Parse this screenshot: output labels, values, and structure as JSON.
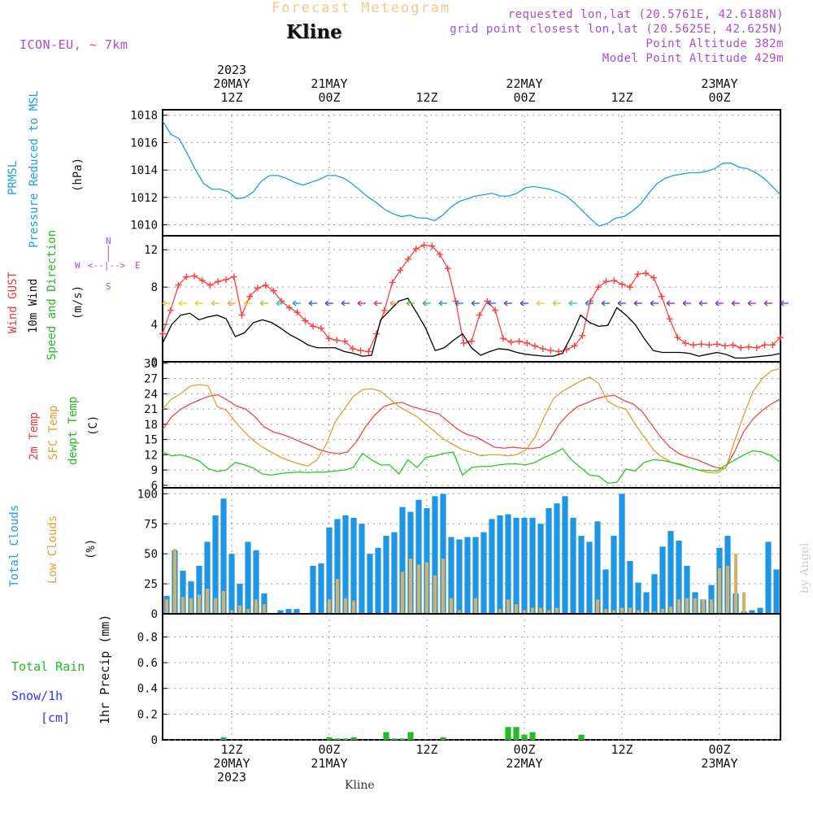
{
  "header": {
    "title": "Forecast Meteogram",
    "model": "ICON-EU, ~ 7km",
    "location": "Kline",
    "requested": "requested lon,lat (20.5761E, 42.6188N)",
    "grid": "grid point closest lon,lat (20.5625E, 42.625N)",
    "point_alt": "Point Altitude 382m",
    "model_alt": "Model Point Altitude 429m",
    "footer_location": "Kline",
    "watermark": "by Angel"
  },
  "top_axis": [
    {
      "line1": "2023",
      "line2": "20MAY",
      "line3": "12Z"
    },
    {
      "line1": "",
      "line2": "21MAY",
      "line3": "00Z"
    },
    {
      "line1": "",
      "line2": "",
      "line3": "12Z"
    },
    {
      "line1": "",
      "line2": "22MAY",
      "line3": "00Z"
    },
    {
      "line1": "",
      "line2": "",
      "line3": "12Z"
    },
    {
      "line1": "",
      "line2": "23MAY",
      "line3": "00Z"
    }
  ],
  "bottom_axis": [
    {
      "line1": "12Z",
      "line2": "20MAY",
      "line3": "2023"
    },
    {
      "line1": "00Z",
      "line2": "21MAY",
      "line3": ""
    },
    {
      "line1": "12Z",
      "line2": "",
      "line3": ""
    },
    {
      "line1": "00Z",
      "line2": "22MAY",
      "line3": ""
    },
    {
      "line1": "12Z",
      "line2": "",
      "line3": ""
    },
    {
      "line1": "00Z",
      "line2": "23MAY",
      "line3": ""
    }
  ],
  "labels": {
    "prmsl": "PRMSL",
    "prmsl_long": "Pressure Reduced to MSL",
    "prmsl_unit": "(hPa)",
    "gust": "Wind GUST",
    "wind10": "10m Wind",
    "wind_dir": "Speed and Direction",
    "wind_unit": "(m/s)",
    "compass_n": "N",
    "compass_s": "S",
    "compass_w": "W",
    "compass_e": "E",
    "t2m": "2m Temp",
    "sfc": "SFC Temp",
    "dewpt": "dewpt Temp",
    "temp_unit": "(C)",
    "total_clouds": "Total Clouds",
    "low_clouds": "Low Clouds",
    "cloud_unit": "(%)",
    "total_rain": "Total  Rain",
    "snow": "Snow/1h",
    "snow_unit": "[cm]",
    "precip": "1hr Precip (mm)"
  },
  "colors": {
    "pressure": "#1aa0e6",
    "gust": "#ff4040",
    "wind": "#000000",
    "t2m": "#f04848",
    "sfc": "#e0a030",
    "dew": "#22cc22",
    "total_cloud": "#1e96e6",
    "low_cloud": "#d8b060",
    "rain": "#22bb22",
    "snow": "#3333ff",
    "header": "#a64fd2"
  },
  "chart_data": [
    {
      "type": "line",
      "name": "pressure",
      "title": "PRMSL Pressure Reduced to MSL",
      "ylabel": "hPa",
      "x_start": 0,
      "x_end": 76,
      "ylim": [
        1009.2,
        1018.4
      ],
      "yticks": [
        1010,
        1012,
        1014,
        1016,
        1018
      ],
      "series": [
        {
          "name": "PRMSL",
          "values": [
            1017.6,
            1016.6,
            1016.3,
            1015.2,
            1014.0,
            1013.0,
            1012.6,
            1012.6,
            1012.4,
            1011.9,
            1012.0,
            1012.4,
            1013.2,
            1013.6,
            1013.6,
            1013.4,
            1013.1,
            1012.9,
            1013.1,
            1013.3,
            1013.6,
            1013.6,
            1013.4,
            1013.0,
            1012.5,
            1012.0,
            1011.6,
            1011.1,
            1010.8,
            1010.6,
            1010.7,
            1010.5,
            1010.5,
            1010.3,
            1010.7,
            1011.3,
            1011.7,
            1011.9,
            1012.1,
            1012.2,
            1012.3,
            1012.1,
            1012.1,
            1012.3,
            1012.7,
            1012.8,
            1012.7,
            1012.6,
            1012.4,
            1012.1,
            1011.6,
            1011.0,
            1010.4,
            1009.9,
            1010.1,
            1010.5,
            1010.6,
            1011.0,
            1011.5,
            1012.3,
            1013.0,
            1013.4,
            1013.6,
            1013.7,
            1013.8,
            1013.8,
            1013.9,
            1014.1,
            1014.5,
            1014.5,
            1014.2,
            1014.1,
            1013.8,
            1013.4,
            1012.8,
            1012.2
          ]
        }
      ]
    },
    {
      "type": "line",
      "name": "wind",
      "title": "Wind GUST / 10m Wind",
      "ylabel": "m/s",
      "x_start": 0,
      "x_end": 76,
      "ylim": [
        0,
        13.5
      ],
      "yticks": [
        0,
        4,
        8,
        12
      ],
      "series": [
        {
          "name": "Wind GUST",
          "values": [
            3.0,
            5.5,
            8.2,
            9.1,
            9.2,
            8.7,
            8.2,
            8.6,
            8.8,
            9.1,
            5.0,
            7.0,
            7.9,
            8.2,
            7.6,
            6.5,
            5.8,
            5.3,
            4.4,
            3.8,
            3.6,
            2.5,
            2.3,
            2.2,
            1.4,
            1.2,
            1.1,
            3.0,
            5.5,
            8.5,
            9.8,
            11.0,
            12.1,
            12.5,
            12.4,
            11.5,
            10.0,
            6.5,
            2.0,
            2.2,
            5.0,
            6.5,
            5.5,
            2.5,
            2.1,
            2.2,
            2.0,
            1.7,
            1.4,
            1.2,
            1.1,
            1.3,
            1.7,
            2.8,
            6.5,
            8.0,
            8.6,
            8.7,
            8.3,
            8.0,
            9.4,
            9.5,
            9.0,
            7.0,
            4.6,
            2.6,
            2.0,
            1.8,
            1.9,
            1.8,
            1.9,
            1.7,
            1.8,
            1.5,
            1.6,
            1.5,
            1.8,
            1.8,
            2.6
          ]
        },
        {
          "name": "10m Wind",
          "values": [
            2.0,
            4.0,
            5.0,
            5.2,
            4.5,
            4.8,
            5.0,
            4.6,
            2.7,
            3.1,
            4.2,
            4.5,
            4.2,
            3.6,
            2.9,
            2.4,
            1.8,
            1.5,
            1.5,
            1.5,
            1.1,
            0.9,
            0.6,
            0.7,
            4.5,
            5.5,
            6.5,
            6.8,
            5.2,
            3.5,
            1.2,
            1.5,
            2.3,
            3.0,
            1.5,
            0.7,
            1.1,
            1.4,
            1.3,
            1.0,
            0.8,
            0.7,
            0.6,
            0.6,
            0.9,
            2.8,
            5.0,
            4.2,
            3.8,
            3.9,
            5.8,
            5.0,
            4.0,
            2.5,
            1.2,
            1.0,
            1.0,
            1.0,
            0.9,
            0.6,
            0.8,
            1.0,
            0.8,
            0.4,
            0.4,
            0.5,
            0.6,
            0.7,
            0.9
          ]
        }
      ]
    },
    {
      "type": "line",
      "name": "temperature",
      "title": "2m Temp / SFC Temp / dewpt Temp",
      "ylabel": "C",
      "x_start": 0,
      "x_end": 76,
      "ylim": [
        5.5,
        30.3
      ],
      "yticks": [
        6,
        9,
        12,
        15,
        18,
        21,
        24,
        27,
        30
      ],
      "series": [
        {
          "name": "2m Temp",
          "values": [
            17.0,
            19.5,
            21.0,
            22.0,
            22.8,
            23.5,
            23.8,
            22.8,
            21.6,
            21.0,
            19.5,
            17.5,
            16.5,
            16.0,
            15.3,
            14.5,
            13.8,
            13.0,
            12.5,
            12.2,
            12.5,
            14.5,
            17.5,
            19.8,
            21.5,
            22.1,
            22.3,
            21.5,
            21.0,
            20.5,
            20.0,
            18.5,
            17.0,
            16.0,
            15.5,
            14.5,
            13.5,
            13.3,
            13.5,
            13.3,
            13.2,
            13.5,
            15.0,
            18.0,
            20.0,
            21.5,
            22.2,
            23.0,
            23.5,
            23.7,
            22.7,
            22.0,
            20.5,
            18.0,
            15.5,
            13.5,
            12.2,
            11.5,
            11.0,
            10.2,
            9.5,
            9.3,
            12.5,
            16.5,
            19.0,
            20.7,
            22.0,
            23.0
          ]
        },
        {
          "name": "SFC Temp",
          "values": [
            21.0,
            23.0,
            24.0,
            25.5,
            25.8,
            25.6,
            21.5,
            20.8,
            18.5,
            16.5,
            14.8,
            13.5,
            12.5,
            11.5,
            10.8,
            10.2,
            9.8,
            11.0,
            14.0,
            18.5,
            21.0,
            23.5,
            24.8,
            25.0,
            24.5,
            23.0,
            21.5,
            20.5,
            19.5,
            18.0,
            16.5,
            15.0,
            14.0,
            13.0,
            12.5,
            11.8,
            12.0,
            12.0,
            11.8,
            12.0,
            13.0,
            15.5,
            19.5,
            23.0,
            24.5,
            25.5,
            26.5,
            27.3,
            26.0,
            22.5,
            21.5,
            21.0,
            18.0,
            15.5,
            13.0,
            11.5,
            10.5,
            10.2,
            9.5,
            9.0,
            8.5,
            8.4,
            9.5,
            15.0,
            20.0,
            24.5,
            27.0,
            28.5,
            29.0
          ]
        },
        {
          "name": "dewpt Temp",
          "values": [
            12.5,
            11.8,
            12.0,
            11.5,
            10.8,
            9.3,
            8.7,
            9.0,
            10.5,
            10.0,
            9.4,
            8.2,
            8.0,
            8.3,
            8.5,
            8.6,
            8.5,
            8.6,
            8.6,
            8.8,
            9.0,
            9.5,
            12.3,
            11.0,
            10.0,
            10.0,
            8.2,
            11.0,
            9.5,
            11.5,
            11.8,
            12.3,
            12.5,
            8.0,
            9.5,
            9.7,
            9.7,
            10.0,
            10.2,
            10.2,
            10.0,
            10.5,
            11.5,
            12.2,
            13.2,
            11.0,
            9.5,
            8.0,
            7.8,
            6.4,
            6.6,
            9.2,
            8.8,
            10.5,
            11.0,
            10.9,
            10.5,
            10.0,
            9.5,
            9.0,
            8.9,
            8.8,
            10.0,
            11.0,
            12.0,
            12.8,
            12.5,
            11.8,
            10.5
          ]
        }
      ]
    },
    {
      "type": "bar",
      "name": "clouds",
      "title": "Total Clouds / Low Clouds",
      "ylabel": "%",
      "x_start": 0,
      "x_end": 76,
      "ylim": [
        0,
        105
      ],
      "yticks": [
        0,
        25,
        50,
        75,
        100
      ],
      "series": [
        {
          "name": "Total Clouds",
          "values": [
            15,
            53,
            36,
            27,
            40,
            60,
            82,
            96,
            50,
            25,
            60,
            53,
            17,
            0,
            3,
            4,
            4,
            0,
            40,
            42,
            72,
            79,
            82,
            80,
            75,
            50,
            55,
            65,
            68,
            89,
            85,
            95,
            88,
            98,
            100,
            64,
            62,
            64,
            64,
            68,
            79,
            82,
            83,
            80,
            80,
            80,
            75,
            88,
            92,
            98,
            80,
            65,
            60,
            77,
            37,
            65,
            100,
            44,
            26,
            18,
            33,
            56,
            69,
            61,
            40,
            18,
            12,
            24,
            55,
            65,
            17,
            2,
            3,
            5,
            60,
            37,
            43
          ]
        },
        {
          "name": "Low Clouds",
          "values": [
            12,
            54,
            14,
            13,
            16,
            21,
            13,
            19,
            3,
            7,
            4,
            12,
            8,
            0,
            0,
            0,
            0,
            0,
            0,
            0,
            12,
            29,
            13,
            11,
            0,
            0,
            0,
            0,
            0,
            35,
            46,
            41,
            43,
            32,
            46,
            13,
            3,
            0,
            13,
            0,
            0,
            4,
            12,
            8,
            3,
            5,
            5,
            3,
            5,
            0,
            0,
            0,
            0,
            12,
            4,
            3,
            5,
            5,
            3,
            2,
            2,
            4,
            6,
            12,
            13,
            13,
            12,
            12,
            38,
            40,
            50,
            18,
            0,
            0,
            0,
            0,
            15,
            29,
            26
          ]
        }
      ]
    },
    {
      "type": "bar",
      "name": "precip",
      "title": "1hr Precip (mm)",
      "ylabel": "mm",
      "x_start": 0,
      "x_end": 76,
      "ylim": [
        0,
        0.98
      ],
      "yticks": [
        0,
        0.2,
        0.4,
        0.6,
        0.8
      ],
      "series": [
        {
          "name": "Total Rain",
          "values": [
            0,
            0,
            0,
            0,
            0,
            0,
            0,
            0.02,
            0,
            0,
            0,
            0,
            0,
            0,
            0,
            0,
            0,
            0,
            0,
            0,
            0.02,
            0.01,
            0.01,
            0.02,
            0,
            0,
            0,
            0.06,
            0.01,
            0.01,
            0.06,
            0,
            0,
            0,
            0.02,
            0,
            0,
            0,
            0,
            0,
            0,
            0,
            0.1,
            0.1,
            0.04,
            0.06,
            0,
            0,
            0,
            0,
            0,
            0.04,
            0,
            0,
            0,
            0,
            0,
            0,
            0,
            0,
            0,
            0,
            0,
            0,
            0,
            0,
            0,
            0,
            0,
            0,
            0,
            0,
            0,
            0,
            0,
            0
          ]
        }
      ]
    }
  ],
  "wind_barbs": [
    {
      "hour": 0,
      "color": "#e8c830"
    },
    {
      "hour": 2,
      "color": "#e8c830"
    },
    {
      "hour": 4,
      "color": "#e8c830"
    },
    {
      "hour": 6,
      "color": "#c8c830"
    },
    {
      "hour": 8,
      "color": "#f0a030"
    },
    {
      "hour": 10,
      "color": "#f0d040"
    },
    {
      "hour": 12,
      "color": "#a0d030"
    },
    {
      "hour": 14,
      "color": "#30c8a0"
    },
    {
      "hour": 16,
      "color": "#2090e0"
    },
    {
      "hour": 18,
      "color": "#3060d0"
    },
    {
      "hour": 20,
      "color": "#4040d0"
    },
    {
      "hour": 22,
      "color": "#7040c0"
    },
    {
      "hour": 24,
      "color": "#d020a0"
    },
    {
      "hour": 26,
      "color": "#e03070"
    },
    {
      "hour": 28,
      "color": "#f09030"
    },
    {
      "hour": 30,
      "color": "#70c030"
    },
    {
      "hour": 32,
      "color": "#30b060"
    },
    {
      "hour": 34,
      "color": "#2090e0"
    },
    {
      "hour": 36,
      "color": "#3060d0"
    },
    {
      "hour": 38,
      "color": "#3060d0"
    },
    {
      "hour": 40,
      "color": "#4050d0"
    },
    {
      "hour": 42,
      "color": "#4050d0"
    },
    {
      "hour": 44,
      "color": "#5040c8"
    },
    {
      "hour": 46,
      "color": "#e8c830"
    },
    {
      "hour": 48,
      "color": "#c0c830"
    },
    {
      "hour": 50,
      "color": "#30c0c0"
    },
    {
      "hour": 52,
      "color": "#2080e0"
    },
    {
      "hour": 54,
      "color": "#4050d0"
    },
    {
      "hour": 56,
      "color": "#6040c8"
    },
    {
      "hour": 58,
      "color": "#7030c0"
    },
    {
      "hour": 60,
      "color": "#7030c0"
    },
    {
      "hour": 62,
      "color": "#8030c0"
    },
    {
      "hour": 64,
      "color": "#8030c0"
    },
    {
      "hour": 66,
      "color": "#8830c0"
    },
    {
      "hour": 68,
      "color": "#8830c0"
    },
    {
      "hour": 70,
      "color": "#9030c0"
    },
    {
      "hour": 72,
      "color": "#9030c0"
    },
    {
      "hour": 74,
      "color": "#9030c0"
    },
    {
      "hour": 76,
      "color": "#9030c0"
    }
  ]
}
